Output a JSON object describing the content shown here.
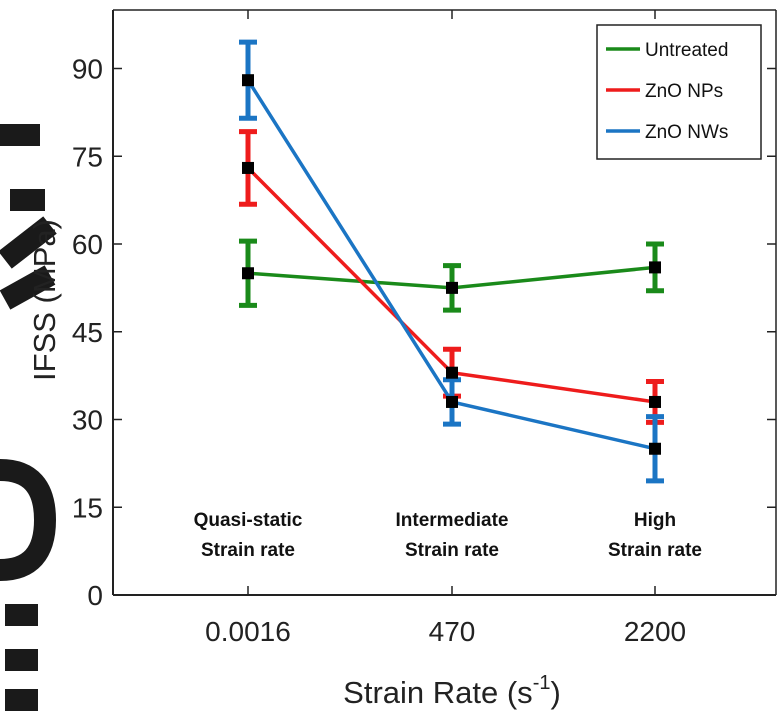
{
  "chart_data": {
    "type": "line",
    "title": "",
    "xlabel": "Strain Rate (s",
    "xlabel_sup": "-1",
    "xlabel_close": ")",
    "ylabel": "IFSS (MPa)",
    "ylim": [
      0,
      100
    ],
    "yticks": [
      "0",
      "15",
      "30",
      "45",
      "60",
      "75",
      "90"
    ],
    "ytick_values": [
      0,
      15,
      30,
      45,
      60,
      75,
      90
    ],
    "categories": [
      "0.0016",
      "470",
      "2200"
    ],
    "region_labels": [
      [
        "Quasi-static",
        "Strain rate"
      ],
      [
        "Intermediate",
        "Strain rate"
      ],
      [
        "High",
        "Strain rate"
      ]
    ],
    "legend_position": "top-right",
    "grid": false,
    "series": [
      {
        "name": "Untreated",
        "color": "#1a8a1a",
        "values": [
          55,
          52.5,
          56
        ],
        "errors": [
          5.5,
          3.8,
          4
        ]
      },
      {
        "name": "ZnO NPs",
        "color": "#ee1c1c",
        "values": [
          73,
          38,
          33
        ],
        "errors": [
          6.2,
          4,
          3.5
        ]
      },
      {
        "name": "ZnO NWs",
        "color": "#1b75c4",
        "values": [
          88,
          33,
          25
        ],
        "errors": [
          6.5,
          3.8,
          5.5
        ]
      }
    ]
  }
}
